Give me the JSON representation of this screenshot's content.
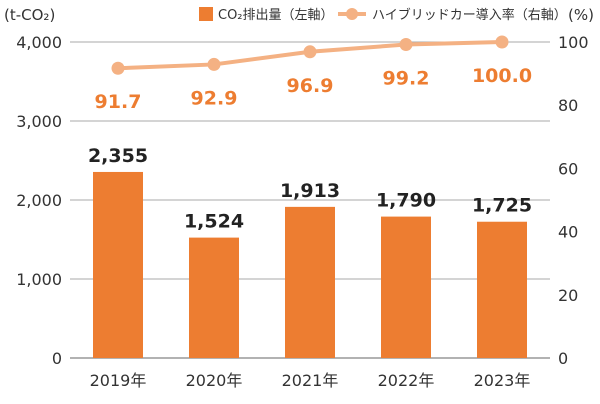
{
  "chart_data": {
    "type": "bar",
    "categories": [
      "2019年",
      "2020年",
      "2021年",
      "2022年",
      "2023年"
    ],
    "series": [
      {
        "name": "CO₂排出量（左軸）",
        "type": "bar",
        "axis": "left",
        "values": [
          2355,
          1524,
          1913,
          1790,
          1725
        ],
        "value_labels": [
          "2,355",
          "1,524",
          "1,913",
          "1,790",
          "1,725"
        ],
        "color": "#ED7D31"
      },
      {
        "name": "ハイブリッドカー導入率（右軸）",
        "type": "line",
        "axis": "right",
        "values": [
          91.7,
          92.9,
          96.9,
          99.2,
          100.0
        ],
        "value_labels": [
          "91.7",
          "92.9",
          "96.9",
          "99.2",
          "100.0"
        ],
        "color": "#F4B183",
        "label_color": "#ED7D31"
      }
    ],
    "ylabel_left": "(t-CO₂)",
    "ylabel_right": "(%)",
    "ylim_left": [
      0,
      4000
    ],
    "ylim_right": [
      0,
      100
    ],
    "yticks_left": [
      0,
      1000,
      2000,
      3000,
      4000
    ],
    "ytick_labels_left": [
      "0",
      "1,000",
      "2,000",
      "3,000",
      "4,000"
    ],
    "yticks_right": [
      0,
      20,
      40,
      60,
      80,
      100
    ],
    "ytick_labels_right": [
      "0",
      "20",
      "40",
      "60",
      "80",
      "100"
    ],
    "grid": true,
    "legend_position": "top-right"
  }
}
